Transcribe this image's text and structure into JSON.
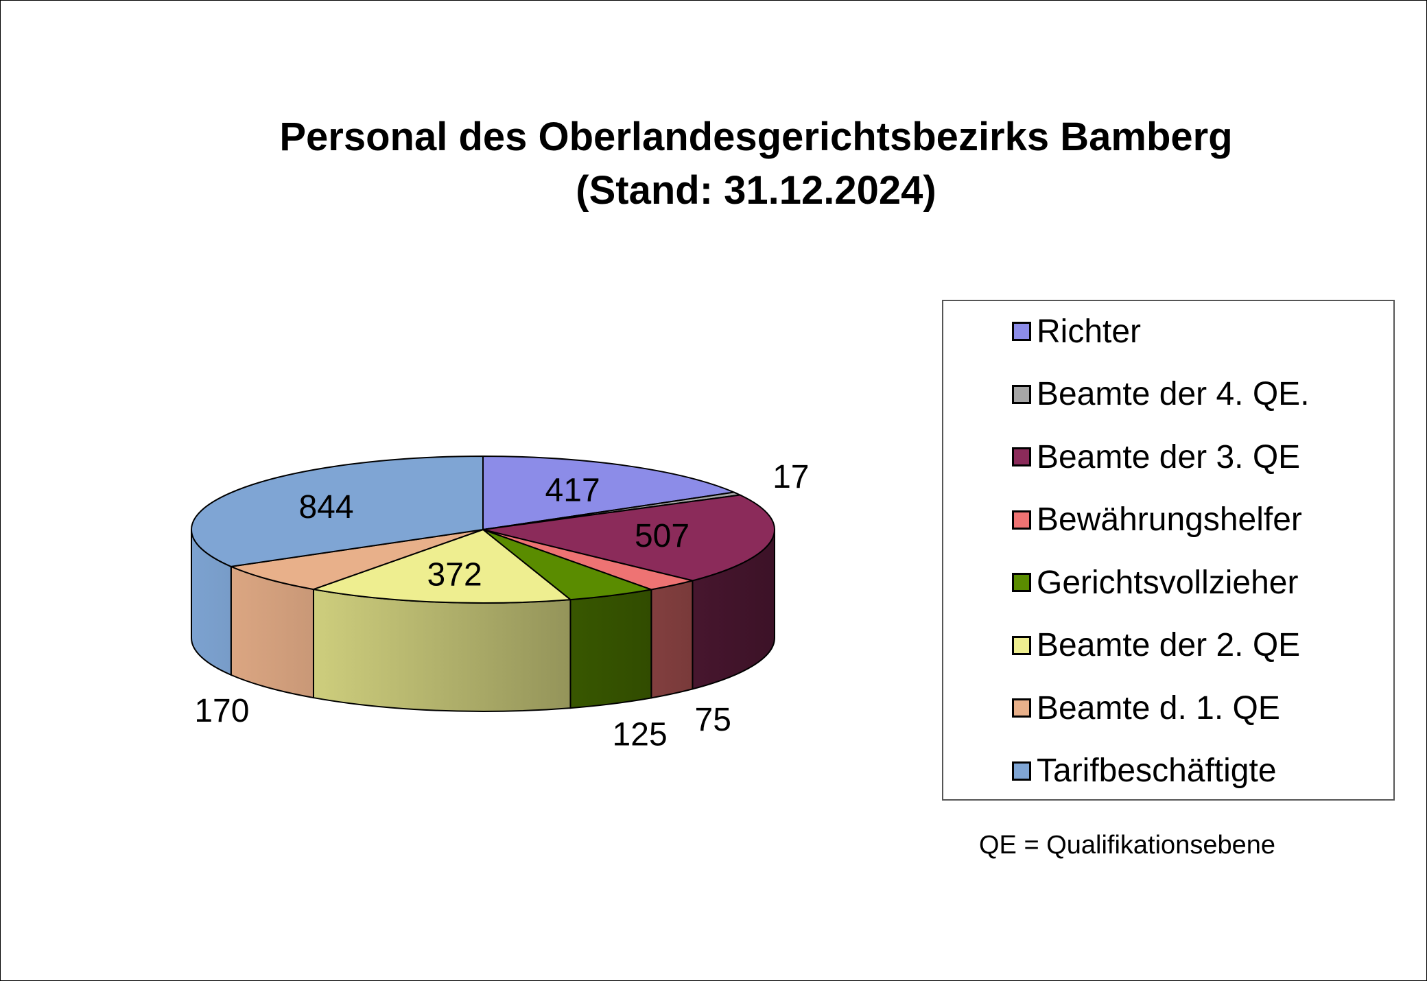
{
  "chart_data": {
    "type": "pie",
    "title": "Personal des Oberlandesgerichtsbezirks Bamberg",
    "subtitle": "(Stand: 31.12.2024)",
    "categories": [
      "Richter",
      "Beamte der 4. QE.",
      "Beamte der 3. QE",
      "Bewährungshelfer",
      "Gerichtsvollzieher",
      "Beamte der 2. QE",
      "Beamte d. 1. QE",
      "Tarifbeschäftigte"
    ],
    "values": [
      417,
      17,
      507,
      75,
      125,
      372,
      170,
      844
    ],
    "value_labels": [
      "417",
      "17",
      "507",
      "75",
      "125",
      "372",
      "170",
      "844"
    ],
    "colors": [
      "#8c8ce8",
      "#a6a6a6",
      "#8b2b5a",
      "#ee7373",
      "#5a8c00",
      "#eeee90",
      "#e8b08a",
      "#7fa5d4"
    ],
    "legend_position": "right",
    "style": "3d"
  },
  "footnote": "QE = Qualifikationsebene"
}
